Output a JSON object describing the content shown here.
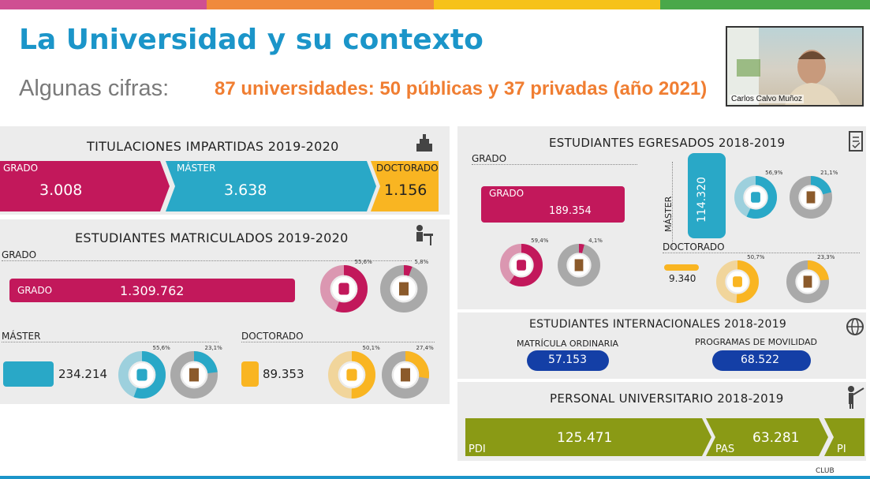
{
  "colors": {
    "magenta": "#c2185b",
    "teal": "#29a8c7",
    "yellow": "#f9b522",
    "olive": "#8a9a15",
    "navy": "#143fa6",
    "title_blue": "#1b95c9",
    "orange": "#f07e32",
    "topbar": [
      "#cf4f92",
      "#f08a3c",
      "#f6c21a",
      "#4aa84a"
    ]
  },
  "slide": {
    "title": "La Universidad y su contexto",
    "subtitle_label": "Algunas cifras:",
    "subtitle_value": "87 universidades: 50 públicas y 37 privadas (año 2021)"
  },
  "video": {
    "name": "Carlos Calvo Muñoz"
  },
  "titulaciones": {
    "title": "TITULACIONES IMPARTIDAS 2019-2020",
    "grado_label": "GRADO",
    "grado_value": "3.008",
    "master_label": "MÁSTER",
    "master_value": "3.638",
    "doctorado_label": "DOCTORADO",
    "doctorado_value": "1.156",
    "icon": "podium-icon"
  },
  "matriculados": {
    "title": "ESTUDIANTES MATRICULADOS 2019-2020",
    "icon": "student-desk-icon",
    "grado_section": "GRADO",
    "grado_bar_label": "GRADO",
    "grado_value": "1.309.762",
    "grado_pct_women": "55,6%",
    "grado_pct_foreign": "5,8%",
    "master_section": "MÁSTER",
    "master_value": "234.214",
    "master_pct_women": "55,6%",
    "master_pct_foreign": "23,1%",
    "doctorado_section": "DOCTORADO",
    "doctorado_value": "89.353",
    "doctorado_pct_women": "50,1%",
    "doctorado_pct_foreign": "27,4%"
  },
  "egresados": {
    "title": "ESTUDIANTES EGRESADOS 2018-2019",
    "icon": "checklist-icon",
    "grado_section": "GRADO",
    "grado_bar_label": "GRADO",
    "grado_value": "189.354",
    "grado_pct_women": "59,4%",
    "grado_pct_foreign": "4,1%",
    "master_label": "MÁSTER",
    "master_value": "114.320",
    "master_pct_women": "56,9%",
    "master_pct_foreign": "21,1%",
    "doctorado_section": "DOCTORADO",
    "doctorado_value": "9.340",
    "doctorado_pct_women": "50,7%",
    "doctorado_pct_foreign": "23,3%"
  },
  "internacionales": {
    "title": "ESTUDIANTES INTERNACIONALES 2018-2019",
    "icon": "globe-icon",
    "ordinaria_label": "MATRÍCULA ORDINARIA",
    "ordinaria_value": "57.153",
    "movilidad_label": "PROGRAMAS DE MOVILIDAD",
    "movilidad_value": "68.522"
  },
  "personal": {
    "title": "PERSONAL UNIVERSITARIO 2018-2019",
    "icon": "presenter-icon",
    "pdi_label": "PDI",
    "pdi_value": "125.471",
    "pas_label": "PAS",
    "pas_value": "63.281",
    "pi_label": "PI"
  },
  "footer": {
    "club_text": "CLUB"
  }
}
